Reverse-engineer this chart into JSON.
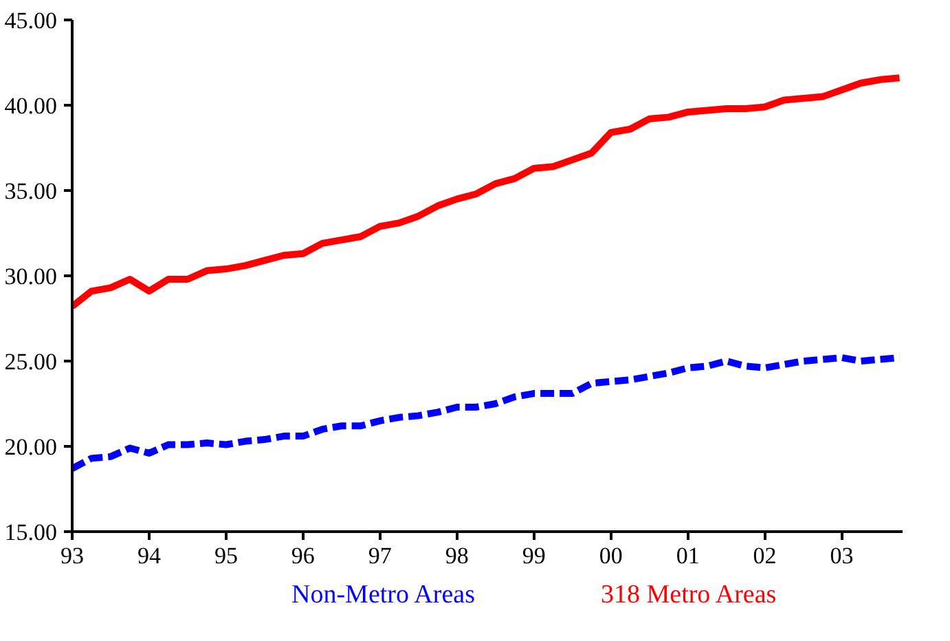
{
  "chart_data": {
    "type": "line",
    "x": [
      1993,
      1993.25,
      1993.5,
      1993.75,
      1994,
      1994.25,
      1994.5,
      1994.75,
      1995,
      1995.25,
      1995.5,
      1995.75,
      1996,
      1996.25,
      1996.5,
      1996.75,
      1997,
      1997.25,
      1997.5,
      1997.75,
      1998,
      1998.25,
      1998.5,
      1998.75,
      1999,
      1999.25,
      1999.5,
      1999.75,
      2000,
      2000.25,
      2000.5,
      2000.75,
      2001,
      2001.25,
      2001.5,
      2001.75,
      2002,
      2002.25,
      2002.5,
      2002.75,
      2003,
      2003.25,
      2003.5,
      2003.75
    ],
    "series": [
      {
        "name": "Non-Metro Areas",
        "color": "#0000ff",
        "line_style": "dashed",
        "values": [
          18.7,
          19.3,
          19.4,
          19.9,
          19.6,
          20.1,
          20.1,
          20.2,
          20.1,
          20.3,
          20.4,
          20.6,
          20.6,
          21.0,
          21.2,
          21.2,
          21.5,
          21.7,
          21.8,
          22.0,
          22.3,
          22.3,
          22.5,
          22.9,
          23.1,
          23.1,
          23.1,
          23.7,
          23.8,
          23.9,
          24.1,
          24.3,
          24.6,
          24.7,
          25.0,
          24.7,
          24.6,
          24.8,
          25.0,
          25.1,
          25.2,
          25.0,
          25.1,
          25.2
        ]
      },
      {
        "name": "318 Metro Areas",
        "color": "#ff0000",
        "line_style": "solid",
        "values": [
          28.2,
          29.1,
          29.3,
          29.8,
          29.1,
          29.8,
          29.8,
          30.3,
          30.4,
          30.6,
          30.9,
          31.2,
          31.3,
          31.9,
          32.1,
          32.3,
          32.9,
          33.1,
          33.5,
          34.1,
          34.5,
          34.8,
          35.4,
          35.7,
          36.3,
          36.4,
          36.8,
          37.2,
          38.4,
          38.6,
          39.2,
          39.3,
          39.6,
          39.7,
          39.8,
          39.8,
          39.9,
          40.3,
          40.4,
          40.5,
          40.9,
          41.3,
          41.5,
          41.6
        ]
      }
    ],
    "xlim": [
      1993,
      2003.79
    ],
    "xticks": [
      {
        "value": 1993,
        "label": "93"
      },
      {
        "value": 1994,
        "label": "94"
      },
      {
        "value": 1995,
        "label": "95"
      },
      {
        "value": 1996,
        "label": "96"
      },
      {
        "value": 1997,
        "label": "97"
      },
      {
        "value": 1998,
        "label": "98"
      },
      {
        "value": 1999,
        "label": "99"
      },
      {
        "value": 2000,
        "label": "00"
      },
      {
        "value": 2001,
        "label": "01"
      },
      {
        "value": 2002,
        "label": "02"
      },
      {
        "value": 2003,
        "label": "03"
      }
    ],
    "ylim": [
      15,
      45
    ],
    "yticks": [
      {
        "value": 15,
        "label": "15.00"
      },
      {
        "value": 20,
        "label": "20.00"
      },
      {
        "value": 25,
        "label": "25.00"
      },
      {
        "value": 30,
        "label": "30.00"
      },
      {
        "value": 35,
        "label": "35.00"
      },
      {
        "value": 40,
        "label": "40.00"
      },
      {
        "value": 45,
        "label": "45.00"
      }
    ],
    "grid": false,
    "legend": "bottom"
  }
}
